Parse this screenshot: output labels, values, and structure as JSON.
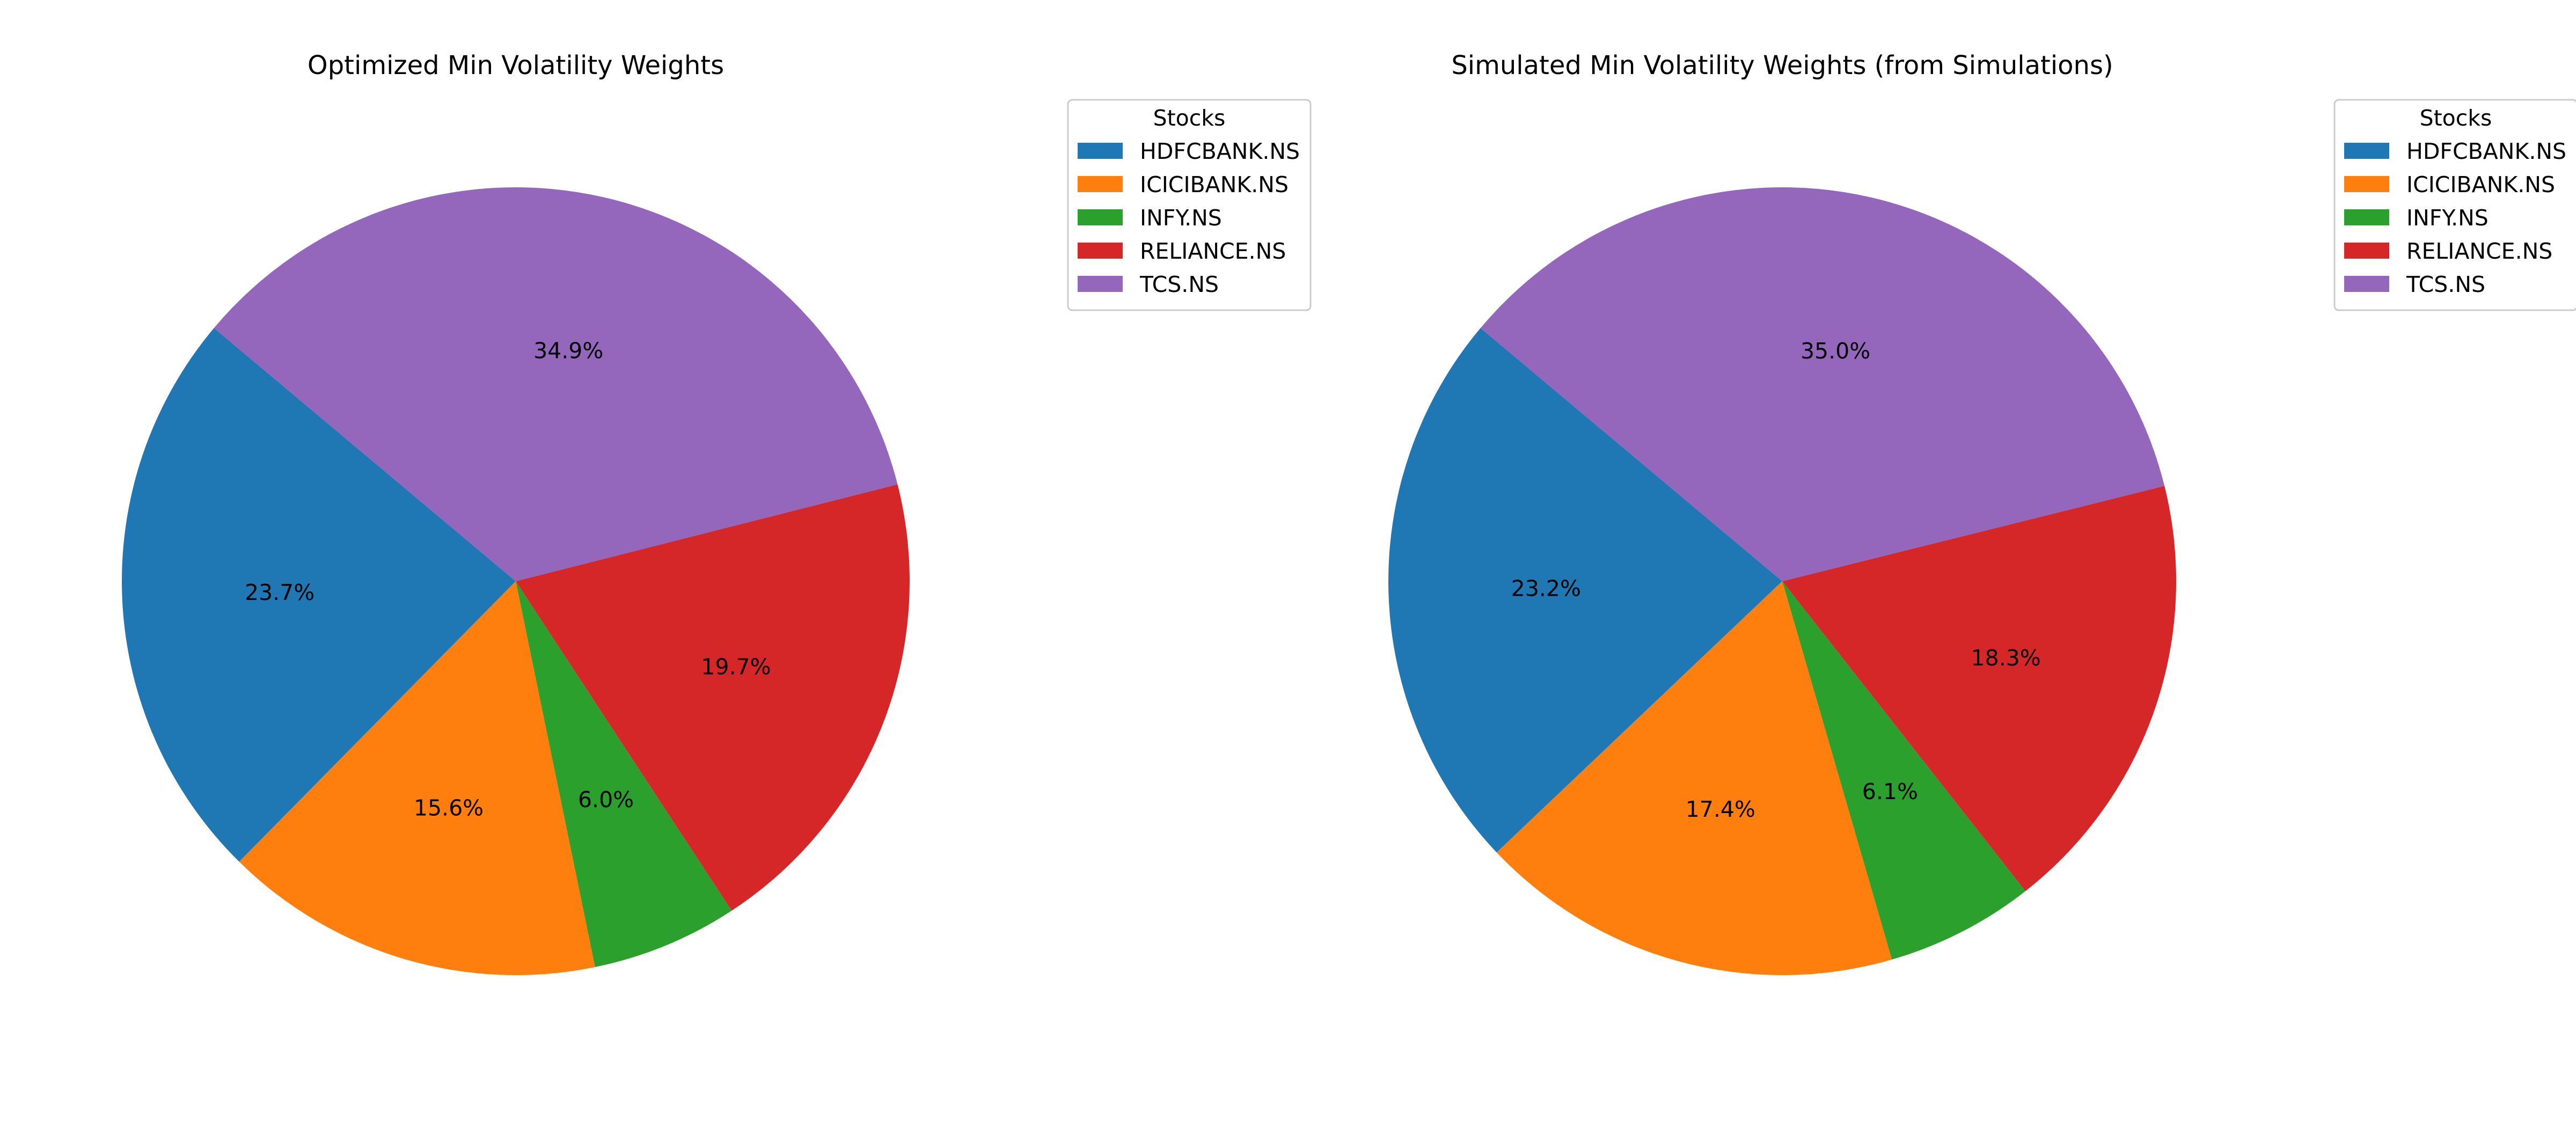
{
  "chart_data": [
    {
      "type": "pie",
      "title": "Optimized Min Volatility Weights",
      "legend_title": "Stocks",
      "legend_placement": "upper-right outside",
      "labels": [
        "HDFCBANK.NS",
        "ICICIBANK.NS",
        "INFY.NS",
        "RELIANCE.NS",
        "TCS.NS"
      ],
      "values": [
        23.7,
        15.6,
        6.0,
        19.7,
        34.9
      ],
      "display_labels": [
        "23.7%",
        "15.6%",
        "6.0%",
        "19.7%",
        "34.9%"
      ],
      "colors": [
        "#1f77b4",
        "#ff7f0e",
        "#2ca02c",
        "#d62728",
        "#9467bd"
      ],
      "start_angle_deg": 140,
      "direction": "counterclockwise"
    },
    {
      "type": "pie",
      "title": "Simulated Min Volatility Weights (from Simulations)",
      "legend_title": "Stocks",
      "legend_placement": "upper-right outside",
      "labels": [
        "HDFCBANK.NS",
        "ICICIBANK.NS",
        "INFY.NS",
        "RELIANCE.NS",
        "TCS.NS"
      ],
      "values": [
        23.2,
        17.4,
        6.1,
        18.3,
        35.0
      ],
      "display_labels": [
        "23.2%",
        "17.4%",
        "6.1%",
        "18.3%",
        "35.0%"
      ],
      "colors": [
        "#1f77b4",
        "#ff7f0e",
        "#2ca02c",
        "#d62728",
        "#9467bd"
      ],
      "start_angle_deg": 140,
      "direction": "counterclockwise"
    }
  ]
}
